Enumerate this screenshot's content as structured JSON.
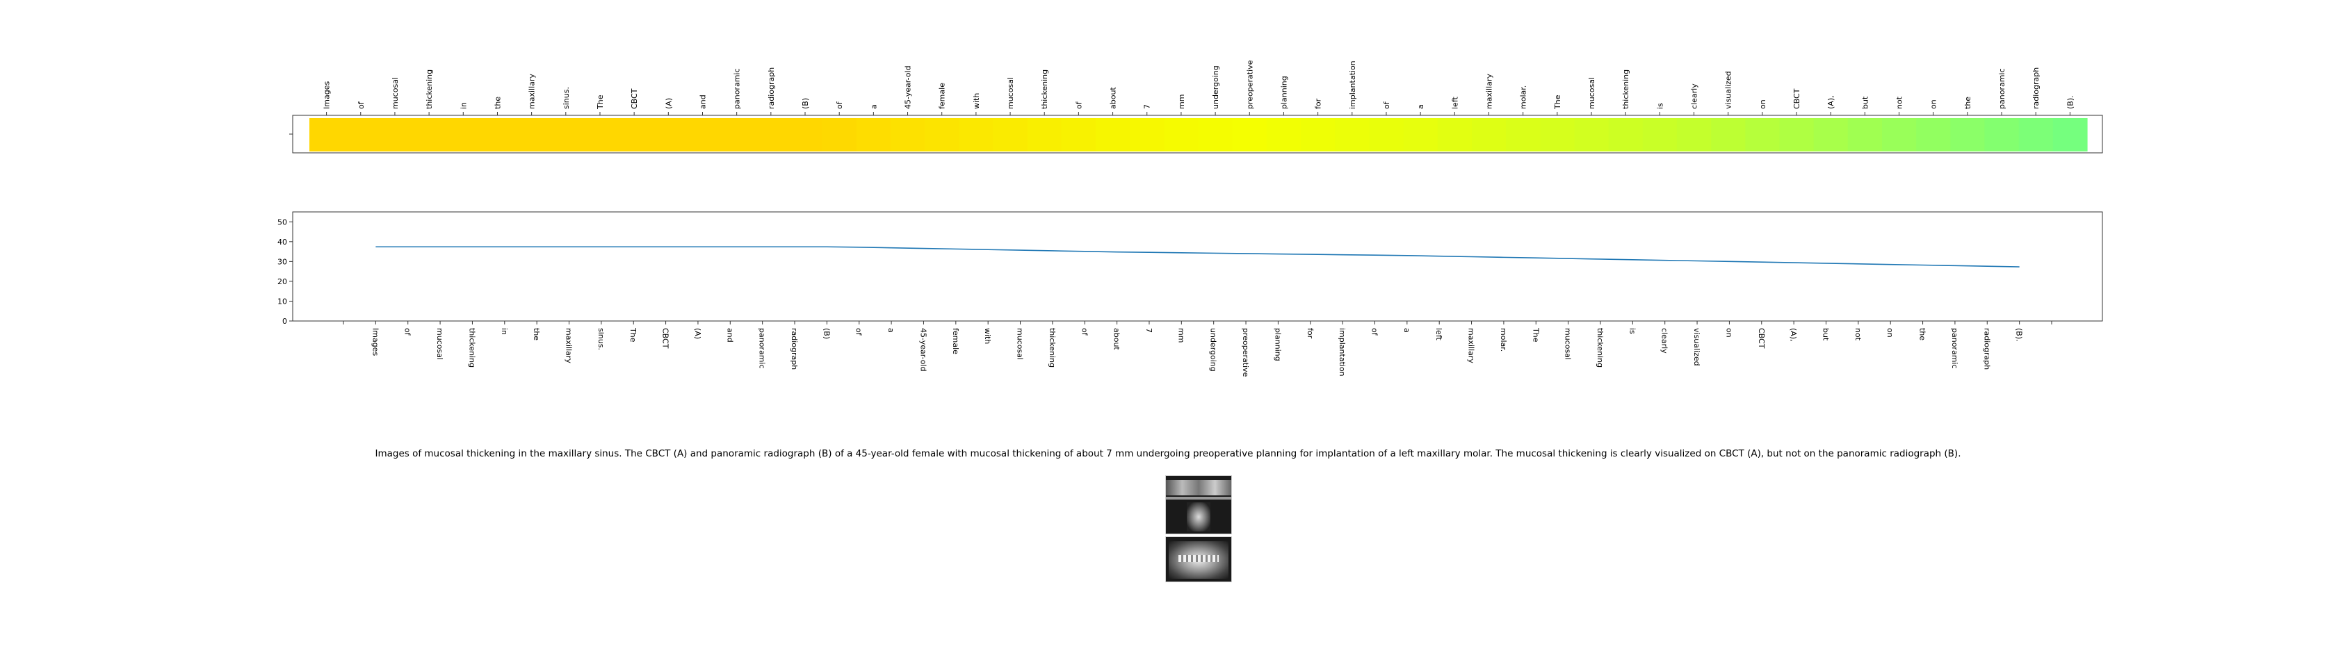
{
  "chart_data": [
    {
      "type": "heatmap",
      "title": "",
      "tokens": [
        "Images",
        "of",
        "mucosal",
        "thickening",
        "in",
        "the",
        "maxillary",
        "sinus.",
        "The",
        "CBCT",
        "(A)",
        "and",
        "panoramic",
        "radiograph",
        "(B)",
        "of",
        "a",
        "45-year-old",
        "female",
        "with",
        "mucosal",
        "thickening",
        "of",
        "about",
        "7",
        "mm",
        "undergoing",
        "preoperative",
        "planning",
        "for",
        "implantation",
        "of",
        "a",
        "left",
        "maxillary",
        "molar.",
        "The",
        "mucosal",
        "thickening",
        "is",
        "clearly",
        "visualized",
        "on",
        "CBCT",
        "(A),",
        "but",
        "not",
        "on",
        "the",
        "panoramic",
        "radiograph",
        "(B)."
      ],
      "values": [
        37.4,
        37.4,
        37.4,
        37.4,
        37.4,
        37.4,
        37.4,
        37.4,
        37.4,
        37.4,
        37.4,
        37.4,
        37.4,
        37.4,
        37.4,
        37.2,
        36.9,
        36.6,
        36.3,
        36.0,
        35.7,
        35.4,
        35.1,
        34.8,
        34.6,
        34.4,
        34.2,
        34.0,
        33.8,
        33.6,
        33.4,
        33.2,
        33.0,
        32.7,
        32.4,
        32.1,
        31.8,
        31.5,
        31.2,
        30.9,
        30.6,
        30.3,
        30.0,
        29.7,
        29.4,
        29.1,
        28.8,
        28.5,
        28.2,
        27.9,
        27.6,
        27.3
      ],
      "colormap": [
        "#ffd700",
        "#f5ff00",
        "#c6ff2a",
        "#75ff7e"
      ],
      "legend": false
    },
    {
      "type": "line",
      "title": "",
      "xlabel": "",
      "ylabel": "",
      "categories": [
        "Images",
        "of",
        "mucosal",
        "thickening",
        "in",
        "the",
        "maxillary",
        "sinus.",
        "The",
        "CBCT",
        "(A)",
        "and",
        "panoramic",
        "radiograph",
        "(B)",
        "of",
        "a",
        "45-year-old",
        "female",
        "with",
        "mucosal",
        "thickening",
        "of",
        "about",
        "7",
        "mm",
        "undergoing",
        "preoperative",
        "planning",
        "for",
        "implantation",
        "of",
        "a",
        "left",
        "maxillary",
        "molar.",
        "The",
        "mucosal",
        "thickening",
        "is",
        "clearly",
        "visualized",
        "on",
        "CBCT",
        "(A),",
        "but",
        "not",
        "on",
        "the",
        "panoramic",
        "radiograph",
        "(B)."
      ],
      "values": [
        37.4,
        37.4,
        37.4,
        37.4,
        37.4,
        37.4,
        37.4,
        37.4,
        37.4,
        37.4,
        37.4,
        37.4,
        37.4,
        37.4,
        37.4,
        37.2,
        36.9,
        36.6,
        36.3,
        36.0,
        35.7,
        35.4,
        35.1,
        34.8,
        34.6,
        34.4,
        34.2,
        34.0,
        33.8,
        33.6,
        33.4,
        33.2,
        33.0,
        32.7,
        32.4,
        32.1,
        31.8,
        31.5,
        31.2,
        30.9,
        30.6,
        30.3,
        30.0,
        29.7,
        29.4,
        29.1,
        28.8,
        28.5,
        28.2,
        27.9,
        27.6,
        27.3
      ],
      "ylim": [
        0,
        55
      ],
      "yticks": [
        "0",
        "10",
        "20",
        "30",
        "40",
        "50"
      ],
      "line_color": "#1f77b4",
      "grid": false,
      "legend": false
    }
  ],
  "caption": "Images of mucosal thickening in the maxillary sinus. The CBCT (A) and panoramic radiograph (B) of a 45-year-old female with mucosal thickening of about 7 mm undergoing preoperative planning for implantation of a left maxillary molar. The mucosal thickening is clearly visualized on CBCT (A), but not on the panoramic radiograph (B)."
}
